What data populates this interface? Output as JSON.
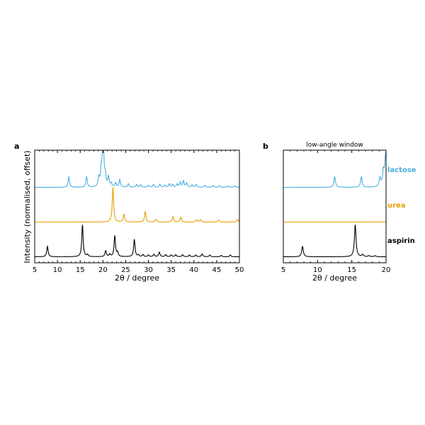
{
  "colors": {
    "lactose": "#4aaee0",
    "urea": "#e69f00",
    "aspirin": "#000000"
  },
  "panels": {
    "a": {
      "letter": "a",
      "xlabel": "2θ / degree",
      "ylabel": "Intensity (normalised, offset)"
    },
    "b": {
      "letter": "b",
      "title": "low-angle window",
      "xlabel": "2θ / degree"
    }
  },
  "chart_data": [
    {
      "panel": "a",
      "type": "line",
      "title": "",
      "xlabel": "2θ / degree",
      "ylabel": "Intensity (normalised, offset)",
      "xlim": [
        5,
        50
      ],
      "xticks": [
        5,
        10,
        15,
        20,
        25,
        30,
        35,
        40,
        45,
        50
      ],
      "grid": false,
      "series_offsets": {
        "aspirin": 0,
        "urea": 1.0,
        "lactose": 2.0
      },
      "series": [
        {
          "name": "aspirin",
          "color": "#000000",
          "peaks": [
            [
              7.8,
              0.3
            ],
            [
              15.5,
              0.92
            ],
            [
              16.6,
              0.06
            ],
            [
              20.6,
              0.17
            ],
            [
              21.5,
              0.07
            ],
            [
              22.6,
              0.6
            ],
            [
              23.2,
              0.12
            ],
            [
              26.9,
              0.5
            ],
            [
              27.8,
              0.05
            ],
            [
              28.8,
              0.06
            ],
            [
              30.0,
              0.05
            ],
            [
              31.2,
              0.07
            ],
            [
              32.4,
              0.13
            ],
            [
              33.8,
              0.06
            ],
            [
              35.0,
              0.05
            ],
            [
              36.0,
              0.06
            ],
            [
              37.5,
              0.06
            ],
            [
              39.0,
              0.05
            ],
            [
              40.4,
              0.05
            ],
            [
              41.8,
              0.08
            ],
            [
              43.5,
              0.05
            ],
            [
              46.0,
              0.04
            ],
            [
              48.0,
              0.05
            ]
          ]
        },
        {
          "name": "urea",
          "color": "#e69f00",
          "peaks": [
            [
              22.2,
              1.0
            ],
            [
              24.6,
              0.22
            ],
            [
              29.3,
              0.3
            ],
            [
              31.6,
              0.08
            ],
            [
              35.4,
              0.16
            ],
            [
              37.1,
              0.14
            ],
            [
              40.6,
              0.07
            ],
            [
              41.4,
              0.07
            ],
            [
              45.4,
              0.06
            ],
            [
              49.6,
              0.08
            ]
          ]
        },
        {
          "name": "lactose",
          "color": "#4aaee0",
          "peaks": [
            [
              12.5,
              0.3
            ],
            [
              16.4,
              0.3
            ],
            [
              19.1,
              0.25
            ],
            [
              19.6,
              0.4
            ],
            [
              19.9,
              0.55
            ],
            [
              20.1,
              0.92
            ],
            [
              20.5,
              0.3
            ],
            [
              21.2,
              0.28
            ],
            [
              21.8,
              0.1
            ],
            [
              22.8,
              0.12
            ],
            [
              23.7,
              0.22
            ],
            [
              25.6,
              0.1
            ],
            [
              27.4,
              0.08
            ],
            [
              28.3,
              0.07
            ],
            [
              30.0,
              0.06
            ],
            [
              31.1,
              0.08
            ],
            [
              32.5,
              0.09
            ],
            [
              33.6,
              0.06
            ],
            [
              34.6,
              0.1
            ],
            [
              35.3,
              0.08
            ],
            [
              36.3,
              0.09
            ],
            [
              37.0,
              0.14
            ],
            [
              37.7,
              0.18
            ],
            [
              38.4,
              0.12
            ],
            [
              39.6,
              0.07
            ],
            [
              40.5,
              0.08
            ],
            [
              42.4,
              0.06
            ],
            [
              44.2,
              0.05
            ],
            [
              45.6,
              0.05
            ],
            [
              47.5,
              0.04
            ],
            [
              49.0,
              0.04
            ]
          ]
        }
      ]
    },
    {
      "panel": "b",
      "type": "line",
      "title": "low-angle window",
      "xlabel": "2θ / degree",
      "ylabel": "",
      "xlim": [
        5,
        20
      ],
      "xticks": [
        5,
        10,
        15,
        20
      ],
      "grid": false,
      "series_offsets": {
        "aspirin": 0,
        "urea": 1.0,
        "lactose": 2.0
      },
      "series": [
        {
          "name": "aspirin",
          "color": "#000000",
          "peaks": [
            [
              7.8,
              0.3
            ],
            [
              15.5,
              0.92
            ],
            [
              16.6,
              0.06
            ],
            [
              17.5,
              0.03
            ],
            [
              18.4,
              0.03
            ]
          ]
        },
        {
          "name": "urea",
          "color": "#e69f00",
          "peaks": [
            [
              22.2,
              1.0
            ]
          ]
        },
        {
          "name": "lactose",
          "color": "#4aaee0",
          "peaks": [
            [
              12.5,
              0.3
            ],
            [
              16.4,
              0.3
            ],
            [
              19.1,
              0.25
            ],
            [
              19.6,
              0.4
            ],
            [
              19.9,
              0.55
            ],
            [
              20.1,
              0.92
            ]
          ]
        }
      ],
      "series_labels": [
        "lactose",
        "urea",
        "aspirin"
      ]
    }
  ]
}
